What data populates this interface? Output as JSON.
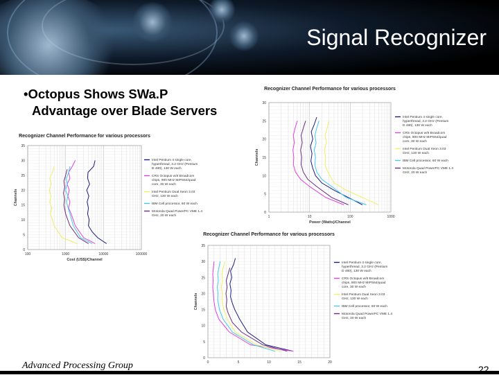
{
  "slide": {
    "title": "Signal Recognizer",
    "bullet_line1": "•Octopus Shows SWa.P",
    "bullet_line2": "Advantage over Blade Servers",
    "footer": "Advanced Processing Group",
    "page_number": "22"
  },
  "colors": {
    "intel_p4": "#1a1a80",
    "crs_octopus": "#e040e0",
    "intel_xeon": "#f0f060",
    "ibm_cell": "#40c8f0",
    "motorola": "#6a2a80"
  },
  "chart_data": [
    {
      "id": "cost",
      "type": "line",
      "title": "Recognizer Channel Performance for various processors",
      "xlabel": "Cost (US$)/Channel",
      "ylabel": "Channels",
      "xscale": "log",
      "xlim": [
        100,
        100000
      ],
      "ylim": [
        0,
        35
      ],
      "x_ticks": [
        "100",
        "1000",
        "10000",
        "100000"
      ],
      "y_ticks": [
        "0",
        "5",
        "10",
        "15",
        "20",
        "25",
        "30",
        "35"
      ],
      "grid": true,
      "legend_position": "right",
      "series": [
        {
          "name": "Intel Pentium 4 single core, hyperthread, 3.2 GHz (Pentium D 480), 130 W each",
          "color": "#1a1a80",
          "x": [
            6000,
            5500,
            3900,
            3800,
            4300,
            3600,
            4100,
            3700,
            4000,
            3800,
            4200,
            4000,
            5000,
            7000,
            12000
          ],
          "y": [
            30,
            28,
            26,
            24,
            22,
            20,
            18,
            16,
            14,
            12,
            10,
            8,
            6,
            4,
            2
          ]
        },
        {
          "name": "CRS Octopus w/8 Broadcom chips, 900 MHz MIPS64/quad core, 30 W each",
          "color": "#e040e0",
          "x": [
            1800,
            1500,
            1200,
            1300,
            1100,
            1250,
            1150,
            1300,
            1200,
            1400,
            1800,
            3000,
            6000
          ],
          "y": [
            30,
            28,
            26,
            24,
            22,
            20,
            18,
            16,
            14,
            12,
            8,
            4,
            2
          ]
        },
        {
          "name": "Intel Pentium Dual Xeon 3.03 GHz, 130 W each",
          "color": "#f0f060",
          "x": [
            500,
            450,
            380,
            420,
            370,
            410,
            380,
            430,
            400,
            500,
            800,
            2000
          ],
          "y": [
            28,
            26,
            24,
            22,
            20,
            18,
            16,
            14,
            12,
            8,
            4,
            2
          ]
        },
        {
          "name": "IBM Cell processor, 60 W each",
          "color": "#40c8f0",
          "x": [
            1300,
            1200,
            1050,
            1100,
            1000,
            1150,
            1050,
            1300,
            1600,
            2500,
            5000
          ],
          "y": [
            28,
            26,
            24,
            22,
            20,
            18,
            16,
            12,
            8,
            4,
            2
          ]
        },
        {
          "name": "Motorola Quad PowerPC VME 1.4 GHz, 20 W each",
          "color": "#6a2a80",
          "x": [
            1100,
            1000,
            900,
            950,
            880,
            940,
            900,
            1000,
            1300,
            2200,
            4000
          ],
          "y": [
            27,
            25,
            23,
            21,
            19,
            17,
            15,
            12,
            8,
            4,
            2
          ]
        }
      ]
    },
    {
      "id": "power",
      "type": "line",
      "title": "Recognizer Channel Performance for various processors",
      "xlabel": "Power (Watts)/Channel",
      "ylabel": "Channels",
      "xscale": "log",
      "xlim": [
        1,
        1000
      ],
      "ylim": [
        0,
        30
      ],
      "x_ticks": [
        "1",
        "10",
        "100",
        "1000"
      ],
      "y_ticks": [
        "0",
        "5",
        "10",
        "15",
        "20",
        "25",
        "30"
      ],
      "grid": true,
      "legend_position": "right",
      "series": [
        {
          "name": "Intel Pentium 4 single core, hyperthread, 3.2 GHz (Pentium D 480), 130 W each",
          "color": "#1a1a80",
          "x": [
            15,
            13,
            11,
            12,
            10.5,
            11.5,
            10.8,
            12,
            14,
            20,
            40,
            90,
            200
          ],
          "y": [
            26,
            24,
            22,
            20,
            18,
            16,
            14,
            12,
            10,
            8,
            6,
            4,
            2
          ]
        },
        {
          "name": "CRS Octopus w/8 Broadcom chips, 900 MHz MIPS64/quad core, 30 W each",
          "color": "#e040e0",
          "x": [
            5,
            4.4,
            4,
            4.2,
            3.9,
            4.1,
            4,
            4.5,
            6,
            10,
            25,
            70
          ],
          "y": [
            25,
            23,
            21,
            19,
            17,
            15,
            13,
            11,
            9,
            7,
            4,
            2
          ]
        },
        {
          "name": "Intel Pentium Dual Xeon 3.03 GHz, 130 W each",
          "color": "#f0f060",
          "x": [
            30,
            27,
            24,
            26,
            23,
            25,
            24,
            28,
            40,
            80,
            200,
            500
          ],
          "y": [
            25,
            23,
            21,
            19,
            17,
            15,
            13,
            11,
            8,
            6,
            4,
            2
          ]
        },
        {
          "name": "IBM Cell processor, 60 W each",
          "color": "#40c8f0",
          "x": [
            17,
            15,
            13.5,
            14.5,
            13,
            14,
            13.5,
            15,
            20,
            35,
            80,
            250
          ],
          "y": [
            25,
            23,
            21,
            19,
            17,
            15,
            13,
            11,
            9,
            7,
            4,
            2
          ]
        },
        {
          "name": "Motorola Quad PowerPC VME 1.4 GHz, 20 W each",
          "color": "#6a2a80",
          "x": [
            8,
            7,
            6.2,
            6.6,
            6,
            6.4,
            6.2,
            7,
            9,
            15,
            35,
            90
          ],
          "y": [
            25,
            23,
            21,
            19,
            17,
            15,
            13,
            11,
            9,
            7,
            4,
            2
          ]
        }
      ]
    },
    {
      "id": "weight",
      "type": "line",
      "title": "Recognizer Channel Performance for various processors",
      "xlabel": "Weight (lbs)/Channel",
      "ylabel": "Channels",
      "xscale": "linear",
      "xlim": [
        0,
        20
      ],
      "ylim": [
        0,
        35
      ],
      "x_ticks": [
        "0",
        "5",
        "10",
        "15",
        "20"
      ],
      "y_ticks": [
        "0",
        "5",
        "10",
        "15",
        "20",
        "25",
        "30",
        "35"
      ],
      "grid": true,
      "legend_position": "right",
      "series": [
        {
          "name": "Intel Pentium 4 single core, hyperthread, 3.2 GHz (Pentium D 480), 130 W each",
          "color": "#1a1a80",
          "x": [
            4.5,
            4.2,
            3.7,
            3.9,
            3.6,
            3.8,
            3.7,
            4.0,
            4.4,
            5.2,
            6.5,
            9.5,
            14
          ],
          "y": [
            31,
            29,
            27,
            25,
            23,
            21,
            19,
            17,
            15,
            12,
            8,
            4,
            2
          ]
        },
        {
          "name": "CRS Octopus w/8 Broadcom chips, 900 MHz MIPS64/quad core, 30 W each",
          "color": "#e040e0",
          "x": [
            1.0,
            0.9,
            0.8,
            0.85,
            0.8,
            0.9,
            0.95,
            1.2,
            1.8,
            3.5,
            7,
            14
          ],
          "y": [
            30,
            28,
            26,
            24,
            22,
            20,
            18,
            15,
            12,
            8,
            4,
            2
          ]
        },
        {
          "name": "Intel Pentium Dual Xeon 3.03 GHz, 130 W each",
          "color": "#f0f060",
          "x": [
            2.8,
            2.5,
            2.3,
            2.4,
            2.2,
            2.35,
            2.3,
            2.6,
            3.2,
            4.5,
            8,
            12
          ],
          "y": [
            30,
            28,
            26,
            24,
            22,
            20,
            18,
            15,
            12,
            8,
            4,
            2
          ]
        },
        {
          "name": "IBM Cell processor, 60 W each",
          "color": "#40c8f0",
          "x": [
            2.0,
            1.8,
            1.6,
            1.7,
            1.55,
            1.65,
            1.6,
            1.9,
            2.5,
            4,
            7.5,
            11
          ],
          "y": [
            30,
            28,
            26,
            24,
            22,
            20,
            18,
            15,
            12,
            8,
            4,
            2
          ]
        },
        {
          "name": "Motorola Quad PowerPC VME 1.4 GHz, 20 W each",
          "color": "#6a2a80",
          "x": [
            3.6,
            3.3,
            3.0,
            3.15,
            2.95,
            3.1,
            3.0,
            3.3,
            4.0,
            5.5,
            9,
            13
          ],
          "y": [
            28,
            26,
            24,
            22,
            20,
            18,
            16,
            14,
            11,
            8,
            4,
            2
          ]
        }
      ]
    }
  ]
}
